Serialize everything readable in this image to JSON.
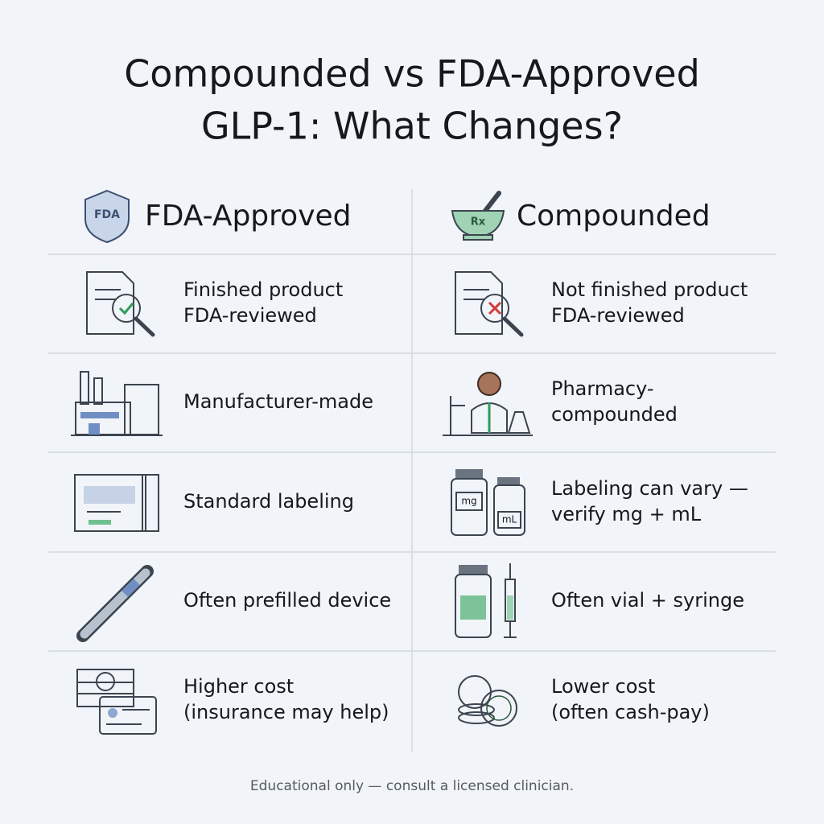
{
  "title_lines": [
    "Compounded vs FDA-Approved",
    "GLP-1: What Changes?"
  ],
  "columns": [
    {
      "heading": "FDA-Approved",
      "badge": "FDA"
    },
    {
      "heading": "Compounded",
      "badge": "Rx"
    }
  ],
  "rows": [
    [
      [
        "Finished product",
        "FDA-reviewed"
      ],
      [
        "Not finished product",
        "FDA-reviewed"
      ]
    ],
    [
      [
        "Manufacturer-made"
      ],
      [
        "Pharmacy-",
        "compounded"
      ]
    ],
    [
      [
        "Standard labeling"
      ],
      [
        "Labeling can vary —",
        "verify mg + mL"
      ]
    ],
    [
      [
        "Often prefilled device"
      ],
      [
        "Often vial + syringe"
      ]
    ],
    [
      [
        "Higher cost",
        "(insurance may help)"
      ],
      [
        "Lower cost",
        "(often cash-pay)"
      ]
    ]
  ],
  "vial_labels": [
    "mg",
    "mL"
  ],
  "footer": "Educational only — consult a licensed clinician."
}
